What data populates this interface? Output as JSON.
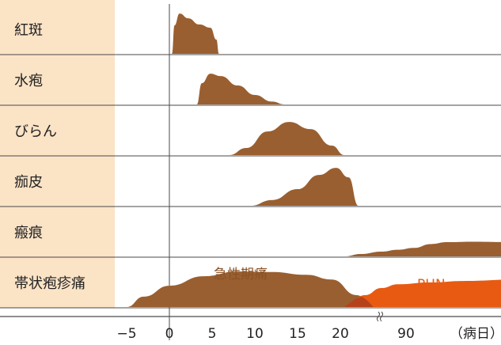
{
  "colors": {
    "label_band": "#fbe3c6",
    "grid_line": "#4a4a4a",
    "brown": "#9a5f30",
    "brown_label": "#8a5226",
    "orange": "#e85a12",
    "orange_dark": "#b5421a"
  },
  "chart_data": {
    "type": "area",
    "title": "",
    "xlabel": "（病日）",
    "ylabel": "",
    "x_ticks": [
      "−5",
      "0",
      "5",
      "10",
      "15",
      "20",
      "90"
    ],
    "x_break": "between 20 and 90",
    "rows": [
      {
        "label": "紅斑",
        "series": [
          {
            "name": "",
            "color": "brown",
            "points": [
              [
                0.3,
                0
              ],
              [
                0.6,
                0.6
              ],
              [
                1.2,
                0.85
              ],
              [
                2.2,
                0.75
              ],
              [
                3.5,
                0.62
              ],
              [
                4.8,
                0.55
              ],
              [
                5.5,
                0.3
              ],
              [
                5.8,
                0
              ]
            ]
          }
        ]
      },
      {
        "label": "水疱",
        "series": [
          {
            "name": "",
            "color": "brown",
            "points": [
              [
                3.2,
                0
              ],
              [
                3.8,
                0.45
              ],
              [
                4.8,
                0.65
              ],
              [
                6,
                0.6
              ],
              [
                8,
                0.4
              ],
              [
                10,
                0.2
              ],
              [
                12,
                0.06
              ],
              [
                13.5,
                0
              ]
            ]
          }
        ]
      },
      {
        "label": "びらん",
        "series": [
          {
            "name": "",
            "color": "brown",
            "points": [
              [
                7,
                0
              ],
              [
                9,
                0.15
              ],
              [
                11.5,
                0.5
              ],
              [
                14,
                0.7
              ],
              [
                16.5,
                0.55
              ],
              [
                19,
                0.2
              ],
              [
                20.5,
                0
              ]
            ]
          }
        ]
      },
      {
        "label": "痂皮",
        "series": [
          {
            "name": "",
            "color": "brown",
            "points": [
              [
                9.5,
                0
              ],
              [
                12,
                0.12
              ],
              [
                15,
                0.35
              ],
              [
                17.5,
                0.65
              ],
              [
                19.5,
                0.8
              ],
              [
                21,
                0.6
              ],
              [
                22.2,
                0
              ]
            ]
          }
        ]
      },
      {
        "label": "瘢痕",
        "series": [
          {
            "name": "",
            "color": "brown",
            "points": [
              [
                20.5,
                0
              ],
              [
                22.5,
                0.05
              ],
              [
                25,
                0.1
              ],
              [
                27,
                0.14
              ],
              [
                29,
                0.18
              ],
              [
                31,
                0.26
              ],
              [
                33,
                0.3
              ],
              [
                36,
                0.31
              ],
              [
                41.4,
                0.3
              ]
            ]
          }
        ]
      },
      {
        "label": "帯状疱疹痛",
        "series": [
          {
            "name": "急性期痛",
            "color": "brown",
            "points": [
              [
                -5,
                0
              ],
              [
                -3,
                0.22
              ],
              [
                0,
                0.45
              ],
              [
                4,
                0.65
              ],
              [
                8,
                0.75
              ],
              [
                12,
                0.74
              ],
              [
                16,
                0.68
              ],
              [
                19,
                0.58
              ],
              [
                22,
                0.25
              ],
              [
                24,
                0
              ]
            ]
          },
          {
            "name": "PHN",
            "color": "orange",
            "points": [
              [
                20.5,
                0
              ],
              [
                23,
                0.25
              ],
              [
                25,
                0.4
              ],
              [
                27,
                0.48
              ],
              [
                31,
                0.52
              ],
              [
                35,
                0.55
              ],
              [
                41.4,
                0.58
              ]
            ]
          }
        ],
        "annotations": [
          "急性期痛",
          "PHN"
        ]
      }
    ]
  }
}
